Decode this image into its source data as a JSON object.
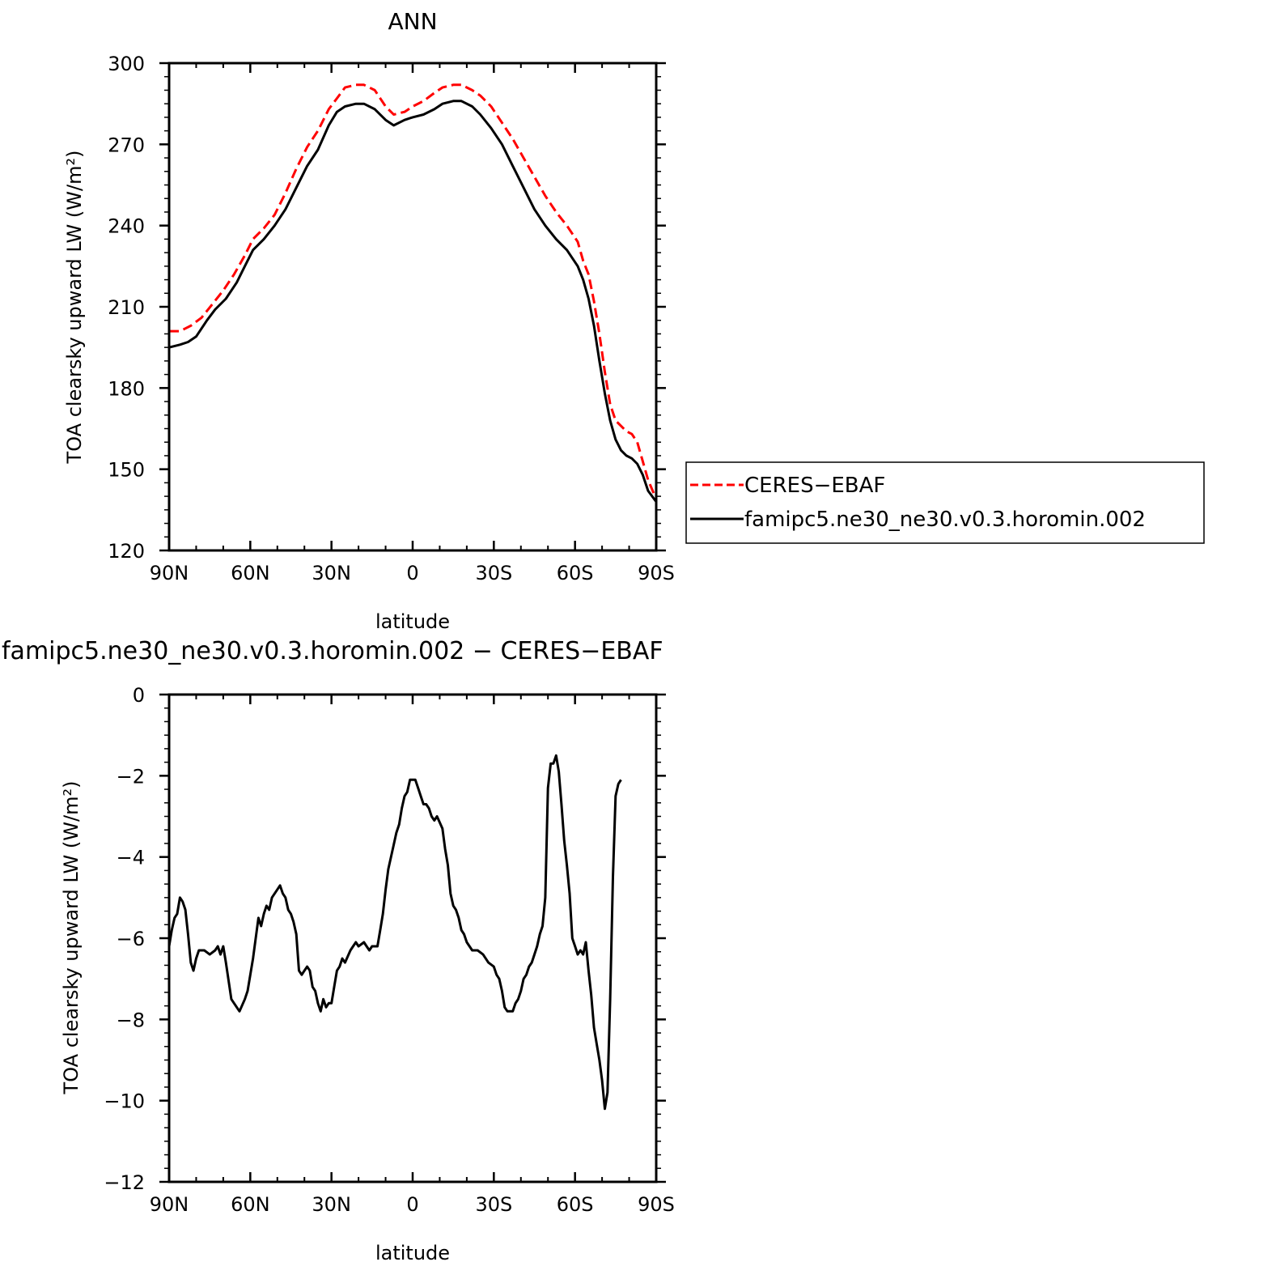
{
  "chart_data": [
    {
      "type": "line",
      "title": "ANN",
      "xlabel": "latitude",
      "ylabel": "TOA clearsky upward LW (W/m²)",
      "xlim": [
        90,
        -90
      ],
      "ylim": [
        120,
        300
      ],
      "x_ticks": [
        90,
        60,
        30,
        0,
        -30,
        -60,
        -90
      ],
      "x_tick_labels": [
        "90N",
        "60N",
        "30N",
        "0",
        "30S",
        "60S",
        "90S"
      ],
      "y_ticks": [
        120,
        150,
        180,
        210,
        240,
        270,
        300
      ],
      "y_tick_labels": [
        "120",
        "150",
        "180",
        "210",
        "240",
        "270",
        "300"
      ],
      "grid": false,
      "legend": {
        "placement": "right",
        "entries": [
          "CERES-EBAF",
          "famipc5.ne30_ne30.v0.3.horomin.002"
        ]
      },
      "series": [
        {
          "name": "CERES-EBAF",
          "color": "#ff0000",
          "style": "dashed",
          "points": [
            [
              90,
              201
            ],
            [
              86,
              201
            ],
            [
              82,
              203
            ],
            [
              78,
              206
            ],
            [
              74,
              211
            ],
            [
              70,
              216
            ],
            [
              66,
              222
            ],
            [
              62,
              229
            ],
            [
              59,
              235
            ],
            [
              55,
              239
            ],
            [
              51,
              244
            ],
            [
              47,
              252
            ],
            [
              43,
              261
            ],
            [
              39,
              269
            ],
            [
              35,
              275
            ],
            [
              31,
              283
            ],
            [
              28,
              287
            ],
            [
              25,
              291
            ],
            [
              21,
              292
            ],
            [
              18,
              292
            ],
            [
              14,
              290
            ],
            [
              10,
              284
            ],
            [
              7,
              281
            ],
            [
              3,
              282
            ],
            [
              0,
              284
            ],
            [
              -4,
              286
            ],
            [
              -8,
              289
            ],
            [
              -11,
              291
            ],
            [
              -15,
              292
            ],
            [
              -18,
              292
            ],
            [
              -22,
              290
            ],
            [
              -25,
              288
            ],
            [
              -29,
              284
            ],
            [
              -33,
              278
            ],
            [
              -37,
              272
            ],
            [
              -41,
              265
            ],
            [
              -45,
              258
            ],
            [
              -49,
              251
            ],
            [
              -53,
              245
            ],
            [
              -57,
              240
            ],
            [
              -61,
              234
            ],
            [
              -63,
              227
            ],
            [
              -65,
              222
            ],
            [
              -67,
              212
            ],
            [
              -69,
              200
            ],
            [
              -71,
              186
            ],
            [
              -73,
              174
            ],
            [
              -75,
              168
            ],
            [
              -77,
              166
            ],
            [
              -79,
              164
            ],
            [
              -81,
              163
            ],
            [
              -83,
              160
            ],
            [
              -85,
              153
            ],
            [
              -87,
              146
            ],
            [
              -90,
              139
            ]
          ]
        },
        {
          "name": "famipc5.ne30_ne30.v0.3.horomin.002",
          "color": "#000000",
          "style": "solid",
          "points": [
            [
              90,
              195
            ],
            [
              86,
              196
            ],
            [
              83,
              197
            ],
            [
              80,
              199
            ],
            [
              76,
              205
            ],
            [
              73,
              209
            ],
            [
              69,
              213
            ],
            [
              65,
              219
            ],
            [
              62,
              225
            ],
            [
              59,
              231
            ],
            [
              55,
              235
            ],
            [
              51,
              240
            ],
            [
              47,
              246
            ],
            [
              43,
              254
            ],
            [
              39,
              262
            ],
            [
              35,
              268
            ],
            [
              31,
              277
            ],
            [
              28,
              282
            ],
            [
              25,
              284
            ],
            [
              21,
              285
            ],
            [
              18,
              285
            ],
            [
              14,
              283
            ],
            [
              10,
              279
            ],
            [
              7,
              277
            ],
            [
              3,
              279
            ],
            [
              0,
              280
            ],
            [
              -4,
              281
            ],
            [
              -8,
              283
            ],
            [
              -11,
              285
            ],
            [
              -15,
              286
            ],
            [
              -18,
              286
            ],
            [
              -22,
              284
            ],
            [
              -25,
              281
            ],
            [
              -29,
              276
            ],
            [
              -33,
              270
            ],
            [
              -37,
              262
            ],
            [
              -41,
              254
            ],
            [
              -45,
              246
            ],
            [
              -49,
              240
            ],
            [
              -53,
              235
            ],
            [
              -57,
              231
            ],
            [
              -61,
              225
            ],
            [
              -63,
              220
            ],
            [
              -65,
              213
            ],
            [
              -67,
              203
            ],
            [
              -69,
              190
            ],
            [
              -71,
              178
            ],
            [
              -73,
              168
            ],
            [
              -75,
              161
            ],
            [
              -77,
              157
            ],
            [
              -79,
              155
            ],
            [
              -81,
              154
            ],
            [
              -83,
              152
            ],
            [
              -85,
              148
            ],
            [
              -87,
              142
            ],
            [
              -90,
              138
            ]
          ]
        }
      ]
    },
    {
      "type": "line",
      "title": "famipc5.ne30_ne30.v0.3.horomin.002 − CERES−EBAF",
      "xlabel": "latitude",
      "ylabel": "TOA clearsky upward LW (W/m²)",
      "xlim": [
        90,
        -90
      ],
      "ylim": [
        -12,
        0
      ],
      "x_ticks": [
        90,
        60,
        30,
        0,
        -30,
        -60,
        -90
      ],
      "x_tick_labels": [
        "90N",
        "60N",
        "30N",
        "0",
        "30S",
        "60S",
        "90S"
      ],
      "y_ticks": [
        0,
        -2,
        -4,
        -6,
        -8,
        -10,
        -12
      ],
      "y_tick_labels": [
        "0",
        "−2",
        "−4",
        "−6",
        "−8",
        "−10",
        "−12"
      ],
      "grid": false,
      "series": [
        {
          "color": "#000000",
          "style": "solid",
          "points": [
            [
              90,
              -6.2
            ],
            [
              89,
              -5.8
            ],
            [
              88,
              -5.5
            ],
            [
              87,
              -5.4
            ],
            [
              86,
              -5.0
            ],
            [
              85,
              -5.1
            ],
            [
              84,
              -5.3
            ],
            [
              83,
              -5.9
            ],
            [
              82,
              -6.6
            ],
            [
              81,
              -6.8
            ],
            [
              80,
              -6.5
            ],
            [
              79,
              -6.3
            ],
            [
              77,
              -6.3
            ],
            [
              75,
              -6.4
            ],
            [
              73,
              -6.3
            ],
            [
              72,
              -6.2
            ],
            [
              71,
              -6.4
            ],
            [
              70,
              -6.2
            ],
            [
              69,
              -6.6
            ],
            [
              67,
              -7.5
            ],
            [
              65,
              -7.7
            ],
            [
              64,
              -7.8
            ],
            [
              62,
              -7.5
            ],
            [
              61,
              -7.3
            ],
            [
              59,
              -6.5
            ],
            [
              57,
              -5.5
            ],
            [
              56,
              -5.7
            ],
            [
              55,
              -5.4
            ],
            [
              54,
              -5.2
            ],
            [
              53,
              -5.3
            ],
            [
              52,
              -5.0
            ],
            [
              50,
              -4.8
            ],
            [
              49,
              -4.7
            ],
            [
              48,
              -4.9
            ],
            [
              47,
              -5.0
            ],
            [
              46,
              -5.3
            ],
            [
              45,
              -5.4
            ],
            [
              44,
              -5.6
            ],
            [
              43,
              -5.9
            ],
            [
              42,
              -6.8
            ],
            [
              41,
              -6.9
            ],
            [
              40,
              -6.8
            ],
            [
              39,
              -6.7
            ],
            [
              38,
              -6.8
            ],
            [
              37,
              -7.2
            ],
            [
              36,
              -7.3
            ],
            [
              35,
              -7.6
            ],
            [
              34,
              -7.8
            ],
            [
              33,
              -7.5
            ],
            [
              32,
              -7.7
            ],
            [
              31,
              -7.6
            ],
            [
              30,
              -7.6
            ],
            [
              29,
              -7.2
            ],
            [
              28,
              -6.8
            ],
            [
              27,
              -6.7
            ],
            [
              26,
              -6.5
            ],
            [
              25,
              -6.6
            ],
            [
              23,
              -6.3
            ],
            [
              22,
              -6.2
            ],
            [
              21,
              -6.1
            ],
            [
              20,
              -6.2
            ],
            [
              18,
              -6.1
            ],
            [
              17,
              -6.2
            ],
            [
              16,
              -6.3
            ],
            [
              15,
              -6.2
            ],
            [
              13,
              -6.2
            ],
            [
              12,
              -5.8
            ],
            [
              11,
              -5.4
            ],
            [
              10,
              -4.8
            ],
            [
              9,
              -4.3
            ],
            [
              7,
              -3.7
            ],
            [
              6,
              -3.4
            ],
            [
              5,
              -3.2
            ],
            [
              4,
              -2.8
            ],
            [
              3,
              -2.5
            ],
            [
              2,
              -2.4
            ],
            [
              1,
              -2.1
            ],
            [
              -1,
              -2.1
            ],
            [
              -2,
              -2.3
            ],
            [
              -3,
              -2.5
            ],
            [
              -4,
              -2.7
            ],
            [
              -5,
              -2.7
            ],
            [
              -6,
              -2.8
            ],
            [
              -7,
              -3.0
            ],
            [
              -8,
              -3.1
            ],
            [
              -9,
              -3.0
            ],
            [
              -11,
              -3.3
            ],
            [
              -12,
              -3.8
            ],
            [
              -13,
              -4.2
            ],
            [
              -14,
              -4.9
            ],
            [
              -15,
              -5.2
            ],
            [
              -16,
              -5.3
            ],
            [
              -17,
              -5.5
            ],
            [
              -18,
              -5.8
            ],
            [
              -19,
              -5.9
            ],
            [
              -20,
              -6.1
            ],
            [
              -22,
              -6.3
            ],
            [
              -24,
              -6.3
            ],
            [
              -26,
              -6.4
            ],
            [
              -28,
              -6.6
            ],
            [
              -30,
              -6.7
            ],
            [
              -31,
              -6.9
            ],
            [
              -32,
              -7.0
            ],
            [
              -33,
              -7.3
            ],
            [
              -34,
              -7.7
            ],
            [
              -35,
              -7.8
            ],
            [
              -36,
              -7.8
            ],
            [
              -37,
              -7.8
            ],
            [
              -38,
              -7.6
            ],
            [
              -39,
              -7.5
            ],
            [
              -40,
              -7.3
            ],
            [
              -41,
              -7.0
            ],
            [
              -42,
              -6.9
            ],
            [
              -43,
              -6.7
            ],
            [
              -44,
              -6.6
            ],
            [
              -45,
              -6.4
            ],
            [
              -46,
              -6.2
            ],
            [
              -47,
              -5.9
            ],
            [
              -48,
              -5.7
            ],
            [
              -49,
              -5.0
            ],
            [
              -50,
              -2.3
            ],
            [
              -51,
              -1.7
            ],
            [
              -52,
              -1.7
            ],
            [
              -53,
              -1.5
            ],
            [
              -54,
              -1.9
            ],
            [
              -55,
              -2.7
            ],
            [
              -56,
              -3.6
            ],
            [
              -57,
              -4.2
            ],
            [
              -58,
              -4.9
            ],
            [
              -59,
              -6.0
            ],
            [
              -60,
              -6.2
            ],
            [
              -61,
              -6.4
            ],
            [
              -62,
              -6.3
            ],
            [
              -63,
              -6.4
            ],
            [
              -64,
              -6.1
            ],
            [
              -65,
              -6.8
            ],
            [
              -66,
              -7.4
            ],
            [
              -67,
              -8.2
            ],
            [
              -68,
              -8.6
            ],
            [
              -69,
              -9.0
            ],
            [
              -70,
              -9.5
            ],
            [
              -71,
              -10.2
            ],
            [
              -72,
              -9.8
            ],
            [
              -73,
              -7.5
            ],
            [
              -74,
              -4.5
            ],
            [
              -75,
              -2.5
            ],
            [
              -76,
              -2.2
            ],
            [
              -77,
              -2.1
            ]
          ]
        }
      ]
    }
  ],
  "legend_box": {
    "entries": [
      {
        "label": "CERES−EBAF",
        "color": "#ff0000",
        "style": "dashed"
      },
      {
        "label": "famipc5.ne30_ne30.v0.3.horomin.002",
        "color": "#000000",
        "style": "solid"
      }
    ]
  },
  "titles": {
    "top": "ANN",
    "bottom": "famipc5.ne30_ne30.v0.3.horomin.002 − CERES−EBAF"
  }
}
